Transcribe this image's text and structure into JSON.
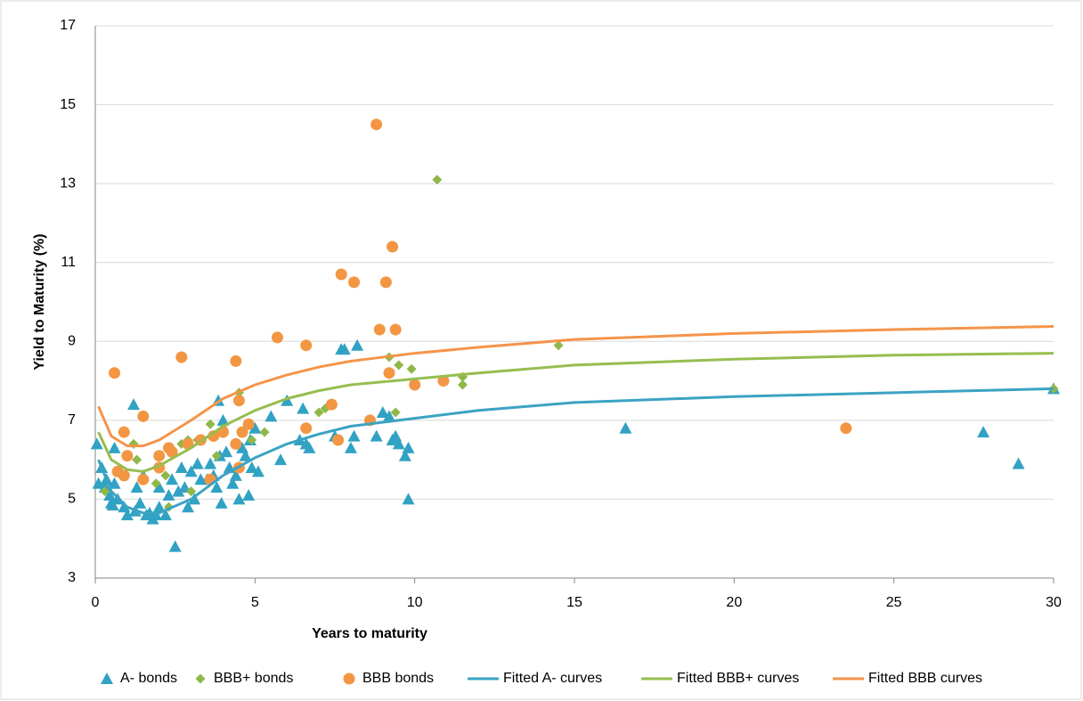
{
  "chart_data": {
    "type": "scatter",
    "x_label": "Years to maturity",
    "y_label": "Yield to Maturity (%)",
    "xlim": [
      0,
      30
    ],
    "xticks": [
      0,
      5,
      10,
      15,
      20,
      25,
      30
    ],
    "ylim": [
      3,
      17
    ],
    "yticks": [
      3,
      5,
      7,
      9,
      11,
      13,
      15,
      17
    ],
    "grid": true,
    "legend": "bottom",
    "series": [
      {
        "name": "A- bonds",
        "kind": "scatter",
        "marker": "triangle",
        "color": "#31a2c4",
        "x": [
          0.05,
          0.1,
          0.2,
          0.3,
          0.35,
          0.45,
          0.5,
          0.55,
          0.6,
          0.6,
          0.7,
          0.9,
          1.0,
          1.2,
          1.25,
          1.3,
          1.4,
          1.5,
          1.6,
          1.7,
          1.8,
          1.9,
          2.0,
          2.0,
          2.2,
          2.3,
          2.4,
          2.5,
          2.6,
          2.7,
          2.8,
          2.9,
          3.0,
          3.1,
          3.2,
          3.3,
          3.5,
          3.6,
          3.7,
          3.8,
          3.85,
          3.9,
          3.95,
          4.0,
          4.1,
          4.2,
          4.3,
          4.4,
          4.5,
          4.6,
          4.7,
          4.8,
          4.85,
          4.9,
          5.0,
          5.1,
          5.5,
          5.8,
          6.0,
          6.4,
          6.5,
          6.6,
          6.7,
          7.5,
          7.7,
          7.8,
          8.0,
          8.1,
          8.2,
          8.8,
          9.0,
          9.2,
          9.3,
          9.4,
          9.5,
          9.7,
          9.8,
          9.8,
          16.6,
          27.8,
          28.9,
          30.0
        ],
        "values": [
          6.4,
          5.4,
          5.8,
          5.3,
          5.5,
          5.1,
          4.9,
          4.85,
          5.4,
          6.3,
          5.0,
          4.8,
          4.6,
          7.4,
          4.7,
          5.3,
          4.9,
          5.6,
          4.6,
          4.65,
          4.5,
          4.6,
          5.3,
          4.8,
          4.6,
          5.1,
          5.5,
          3.8,
          5.2,
          5.8,
          5.3,
          4.8,
          5.7,
          5.0,
          5.9,
          5.5,
          5.5,
          5.9,
          5.6,
          5.3,
          7.5,
          6.1,
          4.9,
          7.0,
          6.2,
          5.8,
          5.4,
          5.6,
          5.0,
          6.3,
          6.1,
          5.1,
          6.5,
          5.8,
          6.8,
          5.7,
          7.1,
          6.0,
          7.5,
          6.5,
          7.3,
          6.4,
          6.3,
          6.6,
          8.8,
          8.8,
          6.3,
          6.6,
          8.9,
          6.6,
          7.2,
          7.1,
          6.5,
          6.6,
          6.4,
          6.1,
          6.3,
          5.0,
          6.8,
          6.7,
          5.9,
          7.8
        ]
      },
      {
        "name": "BBB+ bonds",
        "kind": "scatter",
        "marker": "diamond",
        "color": "#8fb849",
        "x": [
          0.3,
          1.2,
          1.3,
          1.9,
          2.2,
          2.3,
          2.3,
          2.7,
          2.9,
          3.0,
          3.2,
          3.6,
          3.7,
          3.8,
          4.0,
          4.5,
          4.8,
          4.9,
          5.3,
          6.6,
          7.0,
          7.2,
          9.2,
          9.4,
          9.5,
          9.9,
          10.0,
          10.7,
          11.5,
          11.5,
          14.5,
          30.0
        ],
        "values": [
          5.2,
          6.4,
          6.0,
          5.4,
          5.6,
          4.8,
          6.3,
          6.4,
          6.5,
          5.2,
          6.5,
          6.9,
          6.6,
          6.1,
          6.8,
          7.7,
          6.9,
          6.5,
          6.7,
          6.8,
          7.2,
          7.3,
          8.6,
          7.2,
          8.4,
          8.3,
          7.9,
          13.1,
          8.1,
          7.9,
          8.9,
          7.8
        ]
      },
      {
        "name": "BBB bonds",
        "kind": "scatter",
        "marker": "circle",
        "color": "#f39643",
        "x": [
          0.6,
          0.7,
          0.9,
          0.9,
          1.0,
          1.5,
          1.5,
          2.0,
          2.0,
          2.3,
          2.4,
          2.7,
          2.9,
          3.3,
          3.6,
          3.7,
          4.0,
          4.4,
          4.4,
          4.5,
          4.5,
          4.6,
          4.8,
          5.7,
          6.6,
          6.6,
          7.4,
          7.6,
          7.7,
          8.1,
          8.6,
          8.8,
          8.9,
          9.1,
          9.2,
          9.3,
          9.4,
          10.0,
          10.9,
          23.5
        ],
        "values": [
          8.2,
          5.7,
          6.7,
          5.6,
          6.1,
          7.1,
          5.5,
          6.1,
          5.8,
          6.3,
          6.2,
          8.6,
          6.4,
          6.5,
          5.5,
          6.6,
          6.7,
          8.5,
          6.4,
          7.5,
          5.8,
          6.7,
          6.9,
          9.1,
          8.9,
          6.8,
          7.4,
          6.5,
          10.7,
          10.5,
          7.0,
          14.5,
          9.3,
          10.5,
          8.2,
          11.4,
          9.3,
          7.9,
          8.0,
          6.8
        ]
      },
      {
        "name": "Fitted A- curves",
        "kind": "line",
        "color": "#3ba3c3",
        "x": [
          0.1,
          0.5,
          1,
          1.5,
          2,
          3,
          4,
          5,
          6,
          7,
          8,
          10,
          12,
          15,
          20,
          25,
          30
        ],
        "values": [
          6.0,
          5.2,
          4.8,
          4.65,
          4.65,
          5.0,
          5.6,
          6.05,
          6.4,
          6.65,
          6.85,
          7.05,
          7.25,
          7.45,
          7.6,
          7.7,
          7.8
        ]
      },
      {
        "name": "Fitted BBB+ curves",
        "kind": "line",
        "color": "#97bd4f",
        "x": [
          0.1,
          0.5,
          1,
          1.5,
          2,
          3,
          4,
          5,
          6,
          7,
          8,
          10,
          12,
          15,
          20,
          25,
          30
        ],
        "values": [
          6.7,
          6.0,
          5.75,
          5.7,
          5.85,
          6.3,
          6.85,
          7.25,
          7.55,
          7.75,
          7.9,
          8.05,
          8.2,
          8.4,
          8.55,
          8.65,
          8.7
        ]
      },
      {
        "name": "Fitted BBB curves",
        "kind": "line",
        "color": "#f4944a",
        "x": [
          0.1,
          0.5,
          1,
          1.5,
          2,
          3,
          4,
          5,
          6,
          7,
          8,
          10,
          12,
          15,
          20,
          25,
          30
        ],
        "values": [
          7.35,
          6.6,
          6.35,
          6.35,
          6.5,
          7.0,
          7.55,
          7.9,
          8.15,
          8.35,
          8.5,
          8.7,
          8.85,
          9.05,
          9.2,
          9.3,
          9.38
        ]
      }
    ]
  }
}
